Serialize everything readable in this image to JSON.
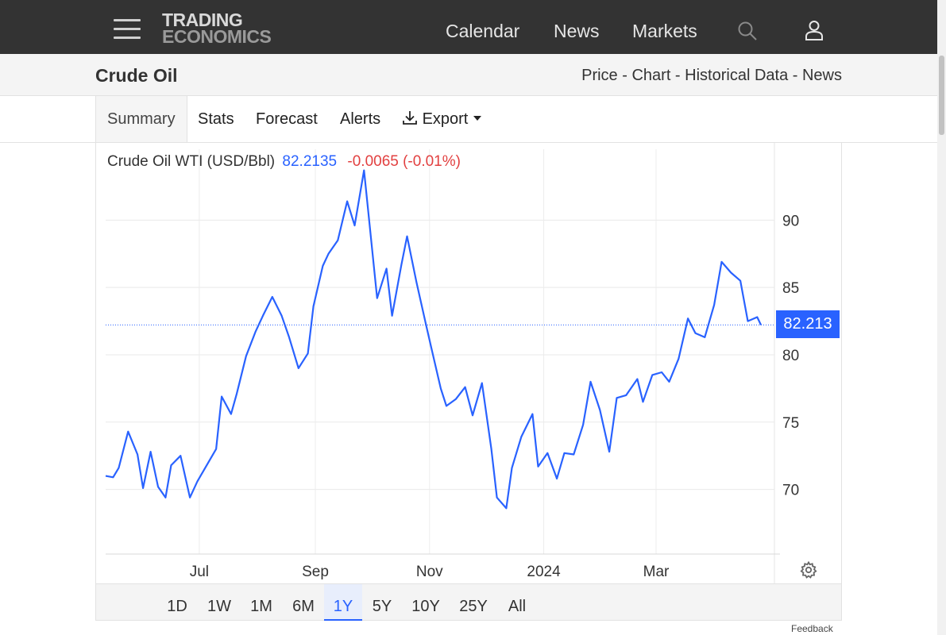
{
  "header": {
    "logo_line1": "TRADING",
    "logo_line2": "ECONOMICS",
    "nav": [
      "Calendar",
      "News",
      "Markets"
    ],
    "icons": [
      "menu-icon",
      "search-icon",
      "user-icon"
    ]
  },
  "subheader": {
    "title": "Crude Oil",
    "links": [
      "Price",
      "Chart",
      "Historical Data",
      "News"
    ],
    "separator": " - "
  },
  "tabs": {
    "items": [
      "Summary",
      "Stats",
      "Forecast",
      "Alerts",
      "Export"
    ],
    "active": "Summary"
  },
  "legend": {
    "name": "Crude Oil WTI (USD/Bbl)",
    "price": "82.2135",
    "change": "-0.0065 (-0.01%)"
  },
  "price_tag": "82.213",
  "range": {
    "items": [
      "1D",
      "1W",
      "1M",
      "6M",
      "1Y",
      "5Y",
      "10Y",
      "25Y",
      "All"
    ],
    "active": "1Y"
  },
  "feedback": "Feedback",
  "colors": {
    "accent": "#2962ff",
    "negative": "#e24040",
    "topbar": "#333333"
  },
  "chart_data": {
    "type": "line",
    "series": [
      {
        "name": "Crude Oil WTI (USD/Bbl)",
        "x": [
          "2023-05-12",
          "2023-05-16",
          "2023-05-19",
          "2023-05-24",
          "2023-05-29",
          "2023-06-01",
          "2023-06-05",
          "2023-06-09",
          "2023-06-13",
          "2023-06-16",
          "2023-06-21",
          "2023-06-26",
          "2023-06-30",
          "2023-07-05",
          "2023-07-10",
          "2023-07-13",
          "2023-07-18",
          "2023-07-21",
          "2023-07-26",
          "2023-07-31",
          "2023-08-04",
          "2023-08-09",
          "2023-08-14",
          "2023-08-18",
          "2023-08-23",
          "2023-08-28",
          "2023-08-31",
          "2023-09-05",
          "2023-09-08",
          "2023-09-13",
          "2023-09-18",
          "2023-09-22",
          "2023-09-27",
          "2023-09-29",
          "2023-10-04",
          "2023-10-09",
          "2023-10-12",
          "2023-10-17",
          "2023-10-20",
          "2023-10-25",
          "2023-10-30",
          "2023-11-02",
          "2023-11-07",
          "2023-11-10",
          "2023-11-15",
          "2023-11-20",
          "2023-11-24",
          "2023-11-29",
          "2023-12-04",
          "2023-12-07",
          "2023-12-12",
          "2023-12-15",
          "2023-12-20",
          "2023-12-26",
          "2023-12-29",
          "2024-01-03",
          "2024-01-08",
          "2024-01-12",
          "2024-01-17",
          "2024-01-22",
          "2024-01-26",
          "2024-01-31",
          "2024-02-05",
          "2024-02-09",
          "2024-02-14",
          "2024-02-20",
          "2024-02-23",
          "2024-02-28",
          "2024-03-04",
          "2024-03-08",
          "2024-03-13",
          "2024-03-18",
          "2024-03-22",
          "2024-03-27",
          "2024-04-01",
          "2024-04-05",
          "2024-04-10",
          "2024-04-15",
          "2024-04-19",
          "2024-04-24",
          "2024-04-26"
        ],
        "values": [
          71.0,
          70.9,
          71.6,
          74.3,
          72.6,
          70.1,
          72.8,
          70.2,
          69.4,
          71.8,
          72.5,
          69.4,
          70.6,
          71.8,
          73.0,
          76.9,
          75.6,
          77.1,
          79.9,
          81.7,
          82.9,
          84.3,
          82.9,
          81.3,
          79.0,
          80.1,
          83.6,
          86.6,
          87.5,
          88.5,
          91.4,
          89.6,
          93.7,
          91.0,
          84.2,
          86.4,
          82.9,
          86.7,
          88.8,
          85.4,
          82.3,
          80.5,
          77.5,
          76.2,
          76.7,
          77.6,
          75.5,
          77.9,
          73.0,
          69.4,
          68.6,
          71.6,
          73.9,
          75.6,
          71.7,
          72.7,
          70.8,
          72.7,
          72.6,
          74.8,
          78.0,
          75.9,
          72.8,
          76.8,
          77.0,
          78.2,
          76.5,
          78.5,
          78.7,
          78.0,
          79.7,
          82.7,
          81.6,
          81.3,
          83.7,
          86.9,
          86.1,
          85.5,
          82.5,
          82.8,
          82.2135
        ]
      }
    ],
    "x_tick_labels": [
      "Jul",
      "Sep",
      "Nov",
      "2024",
      "Mar"
    ],
    "y_tick_labels": [
      "70",
      "75",
      "80",
      "85",
      "90"
    ],
    "ylim": [
      65.2,
      93.5
    ],
    "grid": true,
    "last_value": 82.2135
  }
}
